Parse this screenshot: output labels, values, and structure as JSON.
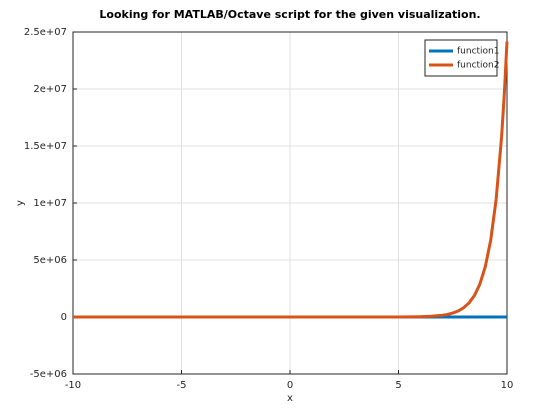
{
  "chart_data": {
    "type": "line",
    "title": "Looking for MATLAB/Octave script for the given visualization.",
    "xlabel": "x",
    "ylabel": "y",
    "x": [
      -10,
      -5,
      0,
      1,
      2,
      3,
      4,
      4.5,
      5,
      5.5,
      6,
      6.5,
      7,
      7.25,
      7.5,
      7.75,
      8,
      8.25,
      8.5,
      8.75,
      9,
      9.25,
      9.5,
      9.75,
      9.875,
      10
    ],
    "series": [
      {
        "name": "function1",
        "color": "#0072bd",
        "values": [
          0,
          0,
          0,
          0,
          0,
          0,
          0,
          0,
          0,
          0,
          0,
          0,
          0,
          0,
          0,
          0,
          0,
          0,
          0,
          0,
          0,
          0,
          0,
          0,
          0,
          0
        ]
      },
      {
        "name": "function2",
        "color": "#d95319",
        "values": [
          0,
          0,
          1,
          5,
          30,
          164,
          898,
          2101,
          4915,
          11499,
          26903,
          62944,
          147267,
          225250,
          344551,
          527000,
          806130,
          1233000,
          1886094,
          2885000,
          4412712,
          6750000,
          10324200,
          15791000,
          19531000,
          24154953
        ]
      }
    ],
    "xlim": [
      -10,
      10
    ],
    "xticks": [
      -10,
      -5,
      0,
      5,
      10
    ],
    "ylim": [
      -5000000,
      25000000
    ],
    "yticks": [
      {
        "value": -5000000,
        "label": "-5e+06"
      },
      0,
      {
        "value": 5000000,
        "label": "5e+06"
      },
      {
        "value": 10000000,
        "label": "1e+07"
      },
      {
        "value": 15000000,
        "label": "1.5e+07"
      },
      {
        "value": 20000000,
        "label": "2e+07"
      },
      {
        "value": 25000000,
        "label": "2.5e+07"
      }
    ],
    "grid": true,
    "legend": "northeast"
  }
}
